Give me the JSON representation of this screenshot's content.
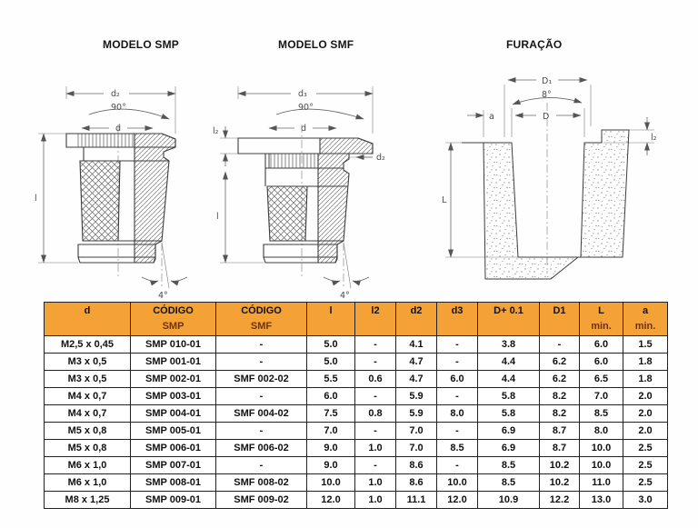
{
  "drawings": {
    "smp": {
      "title": "MODELO SMP",
      "labels": {
        "d2": "d₂",
        "angle90": "90°",
        "d": "d",
        "l": "l",
        "angle4": "4°"
      }
    },
    "smf": {
      "title": "MODELO SMF",
      "labels": {
        "d3": "d₃",
        "angle90": "90°",
        "d": "d",
        "l2": "l₂",
        "l": "l",
        "d2": "d₂",
        "angle4": "4°"
      }
    },
    "furacao": {
      "title": "FURAÇÃO",
      "labels": {
        "D1": "D₁",
        "angle8": "8°",
        "a": "a",
        "D": "D",
        "l2": "l₂",
        "L": "L"
      }
    }
  },
  "table": {
    "header_bg": "#f4a135",
    "sub_color": "#6e3212",
    "columns": [
      {
        "main": "d",
        "sub": ""
      },
      {
        "main": "CÓDIGO",
        "sub": "SMP"
      },
      {
        "main": "CÓDIGO",
        "sub": "SMF"
      },
      {
        "main": "l",
        "sub": ""
      },
      {
        "main": "l2",
        "sub": ""
      },
      {
        "main": "d2",
        "sub": ""
      },
      {
        "main": "d3",
        "sub": ""
      },
      {
        "main": "D+ 0.1",
        "sub": ""
      },
      {
        "main": "D1",
        "sub": ""
      },
      {
        "main": "L",
        "sub": "min."
      },
      {
        "main": "a",
        "sub": "min."
      }
    ],
    "rows": [
      [
        "M2,5 x 0,45",
        "SMP 010-01",
        "-",
        "5.0",
        "-",
        "4.1",
        "-",
        "3.8",
        "-",
        "6.0",
        "1.5"
      ],
      [
        "M3 x 0,5",
        "SMP 001-01",
        "-",
        "5.0",
        "-",
        "4.7",
        "-",
        "4.4",
        "6.2",
        "6.0",
        "1.8"
      ],
      [
        "M3 x 0,5",
        "SMP 002-01",
        "SMF 002-02",
        "5.5",
        "0.6",
        "4.7",
        "6.0",
        "4.4",
        "6.2",
        "6.5",
        "1.8"
      ],
      [
        "M4 x 0,7",
        "SMP 003-01",
        "-",
        "6.0",
        "-",
        "5.9",
        "-",
        "5.8",
        "8.2",
        "7.0",
        "2.0"
      ],
      [
        "M4 x 0,7",
        "SMP 004-01",
        "SMF 004-02",
        "7.5",
        "0.8",
        "5.9",
        "8.0",
        "5.8",
        "8.2",
        "8.5",
        "2.0"
      ],
      [
        "M5 x 0,8",
        "SMP 005-01",
        "-",
        "7.0",
        "-",
        "7.0",
        "-",
        "6.9",
        "8.7",
        "8.0",
        "2.0"
      ],
      [
        "M5 x 0,8",
        "SMP 006-01",
        "SMF 006-02",
        "9.0",
        "1.0",
        "7.0",
        "8.5",
        "6.9",
        "8.7",
        "10.0",
        "2.5"
      ],
      [
        "M6 x 1,0",
        "SMP 007-01",
        "-",
        "9.0",
        "-",
        "8.6",
        "-",
        "8.5",
        "10.2",
        "10.0",
        "2.5"
      ],
      [
        "M6 x 1,0",
        "SMP 008-01",
        "SMF 008-02",
        "10.0",
        "1.0",
        "8.6",
        "10.0",
        "8.5",
        "10.2",
        "11.0",
        "2.5"
      ],
      [
        "M8 x 1,25",
        "SMP 009-01",
        "SMF 009-02",
        "12.0",
        "1.0",
        "11.1",
        "12.0",
        "10.9",
        "12.2",
        "13.0",
        "3.0"
      ]
    ]
  }
}
